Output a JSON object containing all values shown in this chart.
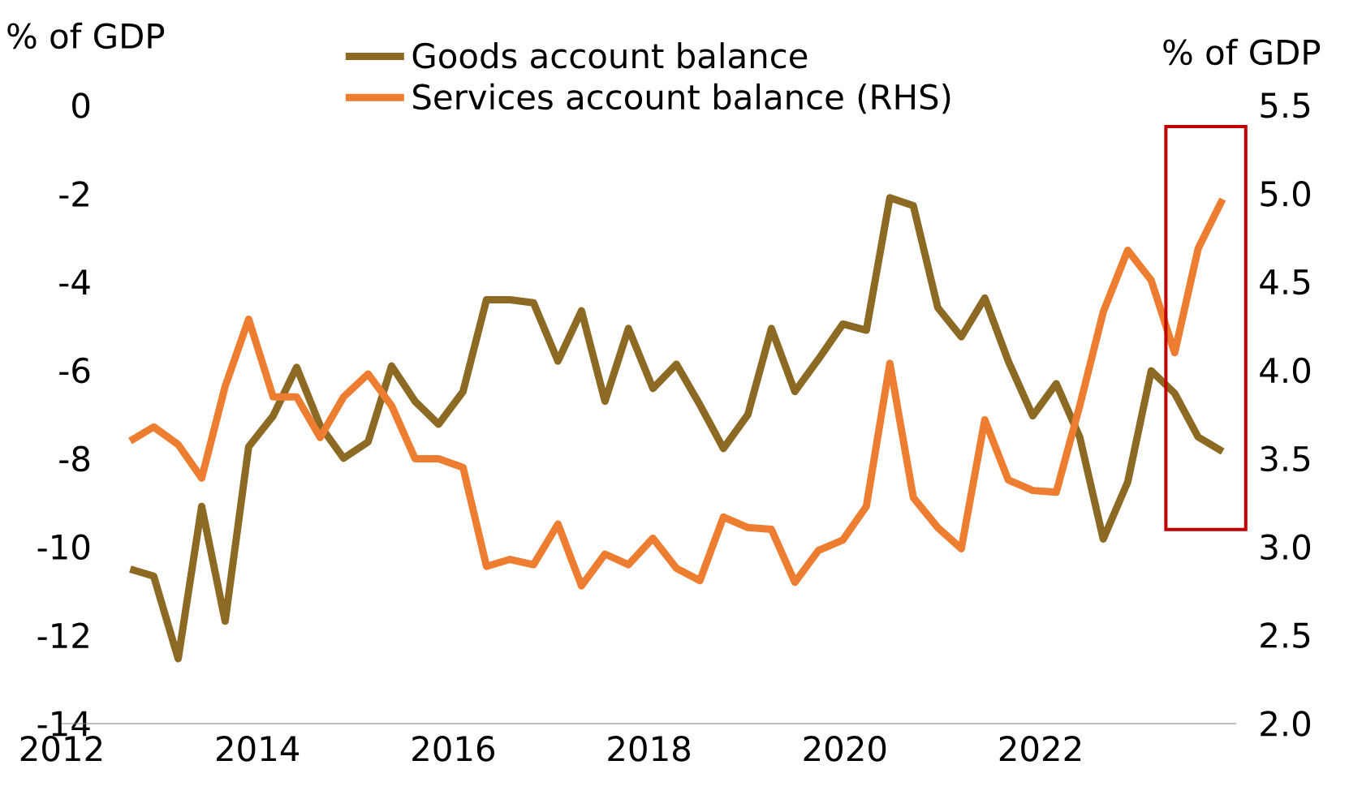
{
  "chart_data": {
    "type": "line",
    "ylabel": "% of GDP",
    "y2label": "% of GDP",
    "x": [
      2012.7,
      2012.94,
      2013.19,
      2013.43,
      2013.67,
      2013.91,
      2014.16,
      2014.4,
      2014.64,
      2014.88,
      2015.13,
      2015.37,
      2015.61,
      2015.85,
      2016.1,
      2016.34,
      2016.58,
      2016.82,
      2017.07,
      2017.31,
      2017.55,
      2017.79,
      2018.04,
      2018.28,
      2018.52,
      2018.76,
      2019.01,
      2019.25,
      2019.49,
      2019.73,
      2019.98,
      2020.22,
      2020.46,
      2020.7,
      2020.95,
      2021.19,
      2021.43,
      2021.67,
      2021.92,
      2022.16,
      2022.4,
      2022.64,
      2022.89,
      2023.13,
      2023.37,
      2023.61,
      2023.86
    ],
    "series": [
      {
        "name": "Goods account balance",
        "color": "#8c6a24",
        "values": [
          -10.5,
          -10.66,
          -12.53,
          -9.08,
          -11.68,
          -7.73,
          -7.03,
          -5.93,
          -7.25,
          -7.99,
          -7.62,
          -5.9,
          -6.7,
          -7.22,
          -6.48,
          -4.4,
          -4.4,
          -4.47,
          -5.79,
          -4.65,
          -6.7,
          -5.05,
          -6.41,
          -5.86,
          -6.78,
          -7.77,
          -7.0,
          -5.05,
          -6.48,
          -5.75,
          -4.95,
          -5.09,
          -2.09,
          -2.27,
          -4.58,
          -5.24,
          -4.36,
          -5.79,
          -7.03,
          -6.3,
          -7.51,
          -9.82,
          -8.53,
          -6.01,
          -6.52,
          -7.51,
          -7.84
        ]
      },
      {
        "name": "Services account balance (RHS)",
        "color": "#ed7d31",
        "axis": "y2",
        "values": [
          3.6,
          3.68,
          3.58,
          3.39,
          3.91,
          4.29,
          3.85,
          3.85,
          3.62,
          3.85,
          3.98,
          3.8,
          3.5,
          3.5,
          3.45,
          2.89,
          2.93,
          2.9,
          3.13,
          2.78,
          2.96,
          2.9,
          3.05,
          2.88,
          2.81,
          3.17,
          3.11,
          3.1,
          2.8,
          2.98,
          3.04,
          3.23,
          4.04,
          3.28,
          3.11,
          2.99,
          3.72,
          3.38,
          3.32,
          3.31,
          3.8,
          4.33,
          4.68,
          4.51,
          4.1,
          4.69,
          4.97
        ]
      }
    ],
    "xlim": [
      2012,
      2024
    ],
    "xticks": [
      2012,
      2014,
      2016,
      2018,
      2020,
      2022
    ],
    "ylim": [
      -14,
      0
    ],
    "yticks": [
      0,
      -2,
      -4,
      -6,
      -8,
      -10,
      -12,
      -14
    ],
    "y2lim": [
      2,
      5.5
    ],
    "y2ticks": [
      {
        "value": 2,
        "label": "2.0"
      },
      2.5,
      {
        "value": 3,
        "label": "3.0"
      },
      3.5,
      {
        "value": 4,
        "label": "4.0"
      },
      4.5,
      {
        "value": 5,
        "label": "5.0"
      },
      5.5
    ],
    "legend": "top",
    "grid": false,
    "marker": "none",
    "line_style": "solid"
  }
}
